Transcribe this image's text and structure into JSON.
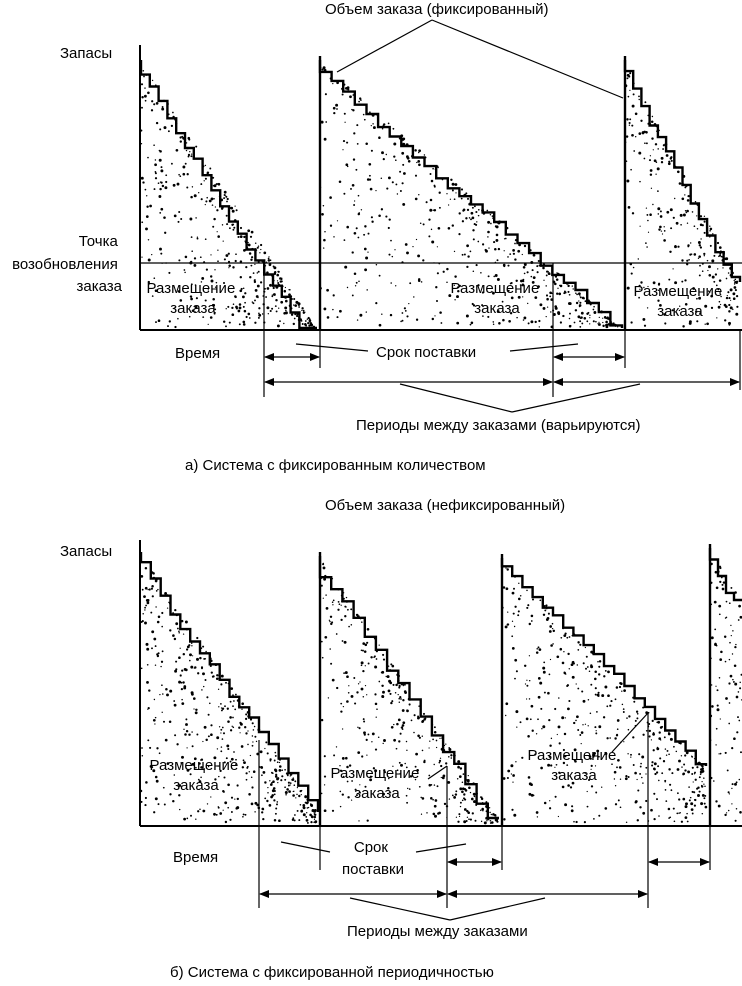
{
  "panel_a": {
    "label_inventory": "Запасы",
    "label_reorder_point": [
      "Точка",
      "возобновления",
      "заказа"
    ],
    "label_order_qty": "Объем заказа (фиксированный)",
    "label_order_placement": [
      "Размещение",
      "заказа"
    ],
    "label_time": "Время",
    "label_lead_time": "Срок поставки",
    "label_periods": "Периоды между заказами (варьируются)",
    "caption": "а) Система с фиксированным количеством"
  },
  "panel_b": {
    "label_inventory": "Запасы",
    "label_order_qty": "Объем заказа (нефиксированный)",
    "label_order_placement": [
      "Размещение",
      "заказа"
    ],
    "label_time": "Время",
    "label_lead_time": [
      "Срок",
      "поставки"
    ],
    "label_periods": "Периоды между заказами",
    "caption": "б) Система с фиксированной периодичностью"
  }
}
